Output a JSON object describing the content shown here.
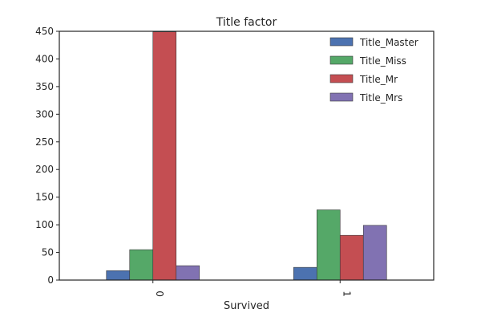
{
  "chart_data": {
    "type": "bar",
    "title": "Title factor",
    "xlabel": "Survived",
    "ylabel": "",
    "categories": [
      "0",
      "1"
    ],
    "series": [
      {
        "name": "Title_Master",
        "values": [
          17,
          23
        ],
        "color": "#4c72b0"
      },
      {
        "name": "Title_Miss",
        "values": [
          55,
          127
        ],
        "color": "#55a868"
      },
      {
        "name": "Title_Mr",
        "values": [
          449,
          81
        ],
        "color": "#c44e52"
      },
      {
        "name": "Title_Mrs",
        "values": [
          26,
          99
        ],
        "color": "#8172b2"
      }
    ],
    "ylim": [
      0,
      450
    ],
    "yticks": [
      0,
      50,
      100,
      150,
      200,
      250,
      300,
      350,
      400,
      450
    ],
    "grid": false,
    "legend": "top-right"
  }
}
